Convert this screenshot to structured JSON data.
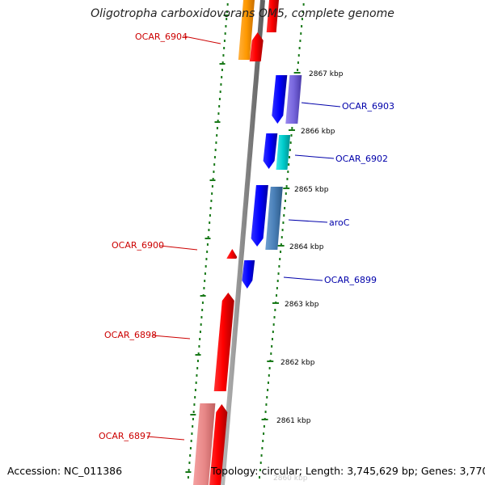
{
  "title": "Oligotropha carboxidovorans OM5, complete genome",
  "footer": {
    "accession": "Accession: NC_011386",
    "summary": "Topology: circular; Length: 3,745,629 bp; Genes: 3,770"
  },
  "colors": {
    "reverse_label": "#cc0000",
    "forward_label": "#0000aa",
    "backbone": "#8c8c8c",
    "tick": "#1a7a1a"
  },
  "scale_labels": [
    "2867 kbp",
    "2866 kbp",
    "2865 kbp",
    "2864 kbp",
    "2863 kbp",
    "2862 kbp",
    "2861 kbp",
    "2860 kbp"
  ],
  "genes_reverse": [
    "OCAR_6904",
    "OCAR_6900",
    "OCAR_6898",
    "OCAR_6897"
  ],
  "genes_forward": [
    "OCAR_6903",
    "OCAR_6902",
    "aroC",
    "OCAR_6899"
  ]
}
